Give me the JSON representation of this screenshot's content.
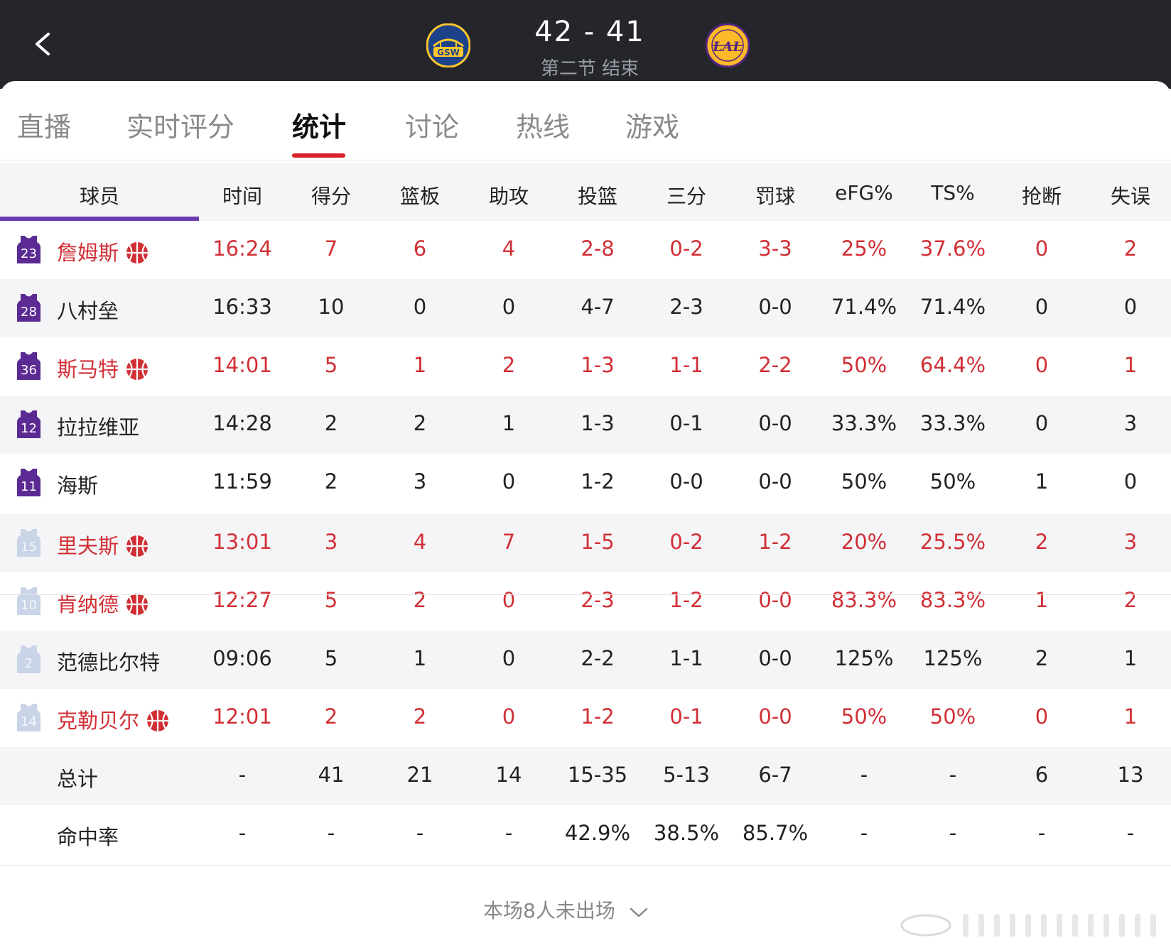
{
  "header": {
    "score": "42 - 41",
    "period": "第二节 结束",
    "home_team_logo_text": "GSW",
    "away_team_logo_text": "LAL",
    "home_color": "#1d428a",
    "home_accent": "#ffc72c",
    "away_color": "#552583",
    "away_accent": "#fdb927"
  },
  "tabs": [
    {
      "label": "直播",
      "active": false
    },
    {
      "label": "实时评分",
      "active": false
    },
    {
      "label": "统计",
      "active": true
    },
    {
      "label": "讨论",
      "active": false
    },
    {
      "label": "热线",
      "active": false
    },
    {
      "label": "游戏",
      "active": false
    }
  ],
  "table": {
    "headers": [
      "球员",
      "时间",
      "得分",
      "篮板",
      "助攻",
      "投篮",
      "三分",
      "罚球",
      "eFG%",
      "TS%",
      "抢断",
      "失误"
    ],
    "starters": [
      {
        "number": "23",
        "name": "詹姆斯",
        "highlight": true,
        "stats": [
          "16:24",
          "7",
          "6",
          "4",
          "2-8",
          "0-2",
          "3-3",
          "25%",
          "37.6%",
          "0",
          "2"
        ]
      },
      {
        "number": "28",
        "name": "八村垒",
        "highlight": false,
        "stats": [
          "16:33",
          "10",
          "0",
          "0",
          "4-7",
          "2-3",
          "0-0",
          "71.4%",
          "71.4%",
          "0",
          "0"
        ]
      },
      {
        "number": "36",
        "name": "斯马特",
        "highlight": true,
        "stats": [
          "14:01",
          "5",
          "1",
          "2",
          "1-3",
          "1-1",
          "2-2",
          "50%",
          "64.4%",
          "0",
          "1"
        ]
      },
      {
        "number": "12",
        "name": "拉拉维亚",
        "highlight": false,
        "stats": [
          "14:28",
          "2",
          "2",
          "1",
          "1-3",
          "0-1",
          "0-0",
          "33.3%",
          "33.3%",
          "0",
          "3"
        ]
      },
      {
        "number": "11",
        "name": "海斯",
        "highlight": false,
        "stats": [
          "11:59",
          "2",
          "3",
          "0",
          "1-2",
          "0-0",
          "0-0",
          "50%",
          "50%",
          "1",
          "0"
        ]
      }
    ],
    "bench": [
      {
        "number": "15",
        "name": "里夫斯",
        "highlight": true,
        "stats": [
          "13:01",
          "3",
          "4",
          "7",
          "1-5",
          "0-2",
          "1-2",
          "20%",
          "25.5%",
          "2",
          "3"
        ]
      },
      {
        "number": "10",
        "name": "肯纳德",
        "highlight": true,
        "stats": [
          "12:27",
          "5",
          "2",
          "0",
          "2-3",
          "1-2",
          "0-0",
          "83.3%",
          "83.3%",
          "1",
          "2"
        ]
      },
      {
        "number": "2",
        "name": "范德比尔特",
        "highlight": false,
        "stats": [
          "09:06",
          "5",
          "1",
          "0",
          "2-2",
          "1-1",
          "0-0",
          "125%",
          "125%",
          "2",
          "1"
        ]
      },
      {
        "number": "14",
        "name": "克勒贝尔",
        "highlight": true,
        "stats": [
          "12:01",
          "2",
          "2",
          "0",
          "1-2",
          "0-1",
          "0-0",
          "50%",
          "50%",
          "0",
          "1"
        ]
      }
    ],
    "totals": {
      "label": "总计",
      "stats": [
        "-",
        "41",
        "21",
        "14",
        "15-35",
        "5-13",
        "6-7",
        "-",
        "-",
        "6",
        "13"
      ]
    },
    "percentages": {
      "label": "命中率",
      "stats": [
        "-",
        "-",
        "-",
        "-",
        "42.9%",
        "38.5%",
        "85.7%",
        "-",
        "-",
        "-",
        "-"
      ]
    },
    "highlight_color": "#d12f36",
    "starter_jersey_color": "#5b2a93",
    "bench_jersey_color": "#c9d4e6"
  },
  "footer": {
    "not_played": "本场8人未出场"
  }
}
